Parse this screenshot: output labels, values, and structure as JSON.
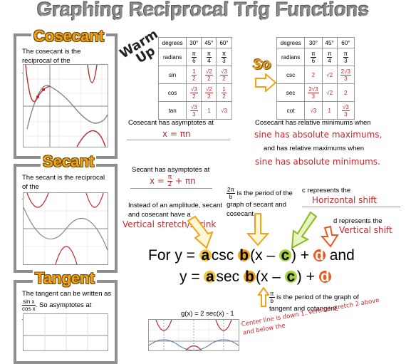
{
  "title": "Graphing Reciprocal Trig Functions",
  "warmup": "Warm Up",
  "so": "So",
  "cosecant": {
    "title": "Cosecant",
    "text": "The cosecant is the reciprocal of the ____________________."
  },
  "secant": {
    "title": "Secant",
    "text": "The secant is the reciprocal of the ____________________."
  },
  "tangent": {
    "title": "Tangent",
    "text1": "The tangent can be written as",
    "frac_n": "sin x",
    "frac_d": "cos x",
    "text2": ". So asymptotes at ______"
  },
  "table1": {
    "header": [
      "degrees",
      "30°",
      "45°",
      "60°"
    ],
    "radians": {
      "label": "radians",
      "values": [
        [
          "π",
          "6"
        ],
        [
          "π",
          "4"
        ],
        [
          "π",
          "3"
        ]
      ]
    },
    "sin": {
      "label": "sin",
      "values": [
        [
          "1",
          "2"
        ],
        [
          "√2",
          "2"
        ],
        [
          "√3",
          "2"
        ]
      ]
    },
    "cos": {
      "label": "cos",
      "values": [
        [
          "√3",
          "2"
        ],
        [
          "√2",
          "2"
        ],
        [
          "1",
          "2"
        ]
      ]
    },
    "tan": {
      "label": "tan",
      "values": [
        [
          "√3",
          "3"
        ],
        [
          "1",
          ""
        ],
        [
          "√3",
          ""
        ]
      ]
    }
  },
  "table2": {
    "header": [
      "degrees",
      "30°",
      "45°",
      "60°"
    ],
    "radians": {
      "label": "radians",
      "values": [
        [
          "π",
          "6"
        ],
        [
          "π",
          "4"
        ],
        [
          "π",
          "3"
        ]
      ]
    },
    "csc": {
      "label": "csc",
      "values": [
        [
          "2",
          ""
        ],
        [
          "√2",
          ""
        ],
        [
          "2√3",
          "3"
        ]
      ]
    },
    "sec": {
      "label": "sec",
      "values": [
        [
          "2√3",
          "3"
        ],
        [
          "√2",
          ""
        ],
        [
          "2",
          ""
        ]
      ]
    },
    "cot": {
      "label": "cot",
      "values": [
        [
          "√3",
          ""
        ],
        [
          "1",
          ""
        ],
        [
          "√3",
          "3"
        ]
      ]
    }
  },
  "csc_asym": "Cosecant has asymptotes at",
  "csc_asym_ans": "x = πn",
  "csc_min": "Cosecant has relative minimums when",
  "csc_min_ans": "sine has absolute maximums,",
  "csc_max": "and has relative maximums when",
  "csc_max_ans": "sine has absolute minimums.",
  "sec_asym": "Secant has asymptotes at",
  "sec_asym_ans_a": "x = ",
  "sec_asym_frac": [
    "π",
    "2"
  ],
  "sec_asym_ans_b": " + πn",
  "period_frac": [
    "2π",
    "b"
  ],
  "period_text": "is the period of the graph of secant and cosecant.",
  "c_text": "c represents the",
  "c_ans": "Horizontal shift",
  "d_text": "d represents the",
  "d_ans": "Vertical shift",
  "amp_text": "Instead of an amplitude, secant and cosecant have a",
  "amp_ans": "Vertical stretch/shrink",
  "eq": {
    "for": "For y = ",
    "a": "a",
    "csc": "csc ",
    "b": "b",
    "x1": "(x – ",
    "c": "c",
    "close": ") + ",
    "d": "d",
    "and": " and",
    "y2": "y = ",
    "sec": "sec "
  },
  "period2_frac": [
    "π",
    "b"
  ],
  "period2_text": "is the period of the graph of tangent and cotangent.",
  "g_label": "g(x) = 2 sec(x) - 1",
  "center_note": "Center line is down 1. Vertical stretch 2 above and below the"
}
